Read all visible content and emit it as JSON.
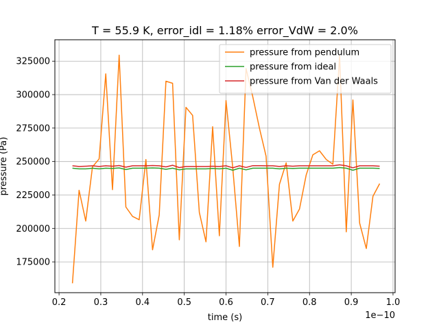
{
  "chart_data": {
    "type": "line",
    "title": "T = 55.9 K, error_idl = 1.18% error_VdW = 2.0%",
    "xlabel": "time (s)",
    "ylabel": "pressure (Pa)",
    "x_offset_text": "1e−10",
    "x_scale": 1e-10,
    "xlim": [
      0.19,
      1.005
    ],
    "ylim": [
      152000,
      341000
    ],
    "xticks": [
      0.2,
      0.3,
      0.4,
      0.5,
      0.6,
      0.7,
      0.8,
      0.9,
      1.0
    ],
    "xtick_labels": [
      "0.2",
      "0.3",
      "0.4",
      "0.5",
      "0.6",
      "0.7",
      "0.8",
      "0.9",
      "1.0"
    ],
    "yticks": [
      175000,
      200000,
      225000,
      250000,
      275000,
      300000,
      325000
    ],
    "ytick_labels": [
      "175000",
      "200000",
      "225000",
      "250000",
      "275000",
      "300000",
      "325000"
    ],
    "grid": true,
    "legend_position": "top-right",
    "x": [
      0.232,
      0.248,
      0.264,
      0.28,
      0.296,
      0.312,
      0.328,
      0.344,
      0.36,
      0.376,
      0.392,
      0.408,
      0.424,
      0.44,
      0.456,
      0.472,
      0.488,
      0.504,
      0.52,
      0.536,
      0.552,
      0.568,
      0.584,
      0.6,
      0.616,
      0.632,
      0.648,
      0.664,
      0.68,
      0.696,
      0.712,
      0.728,
      0.744,
      0.76,
      0.776,
      0.792,
      0.808,
      0.824,
      0.84,
      0.856,
      0.872,
      0.888,
      0.904,
      0.92,
      0.936,
      0.952,
      0.968
    ],
    "series": [
      {
        "name": "pressure from pendulum",
        "color": "#ff7f0e",
        "values": [
          159000,
          228500,
          205500,
          246000,
          252000,
          315500,
          229000,
          329500,
          216000,
          209000,
          206500,
          251500,
          184000,
          210000,
          310000,
          308500,
          191500,
          290500,
          284500,
          212000,
          190000,
          276000,
          194500,
          295500,
          245500,
          186500,
          319500,
          298500,
          275000,
          254000,
          171000,
          233000,
          249000,
          205500,
          214500,
          240000,
          255000,
          258000,
          251500,
          248000,
          329000,
          197500,
          296000,
          204000,
          185000,
          224000,
          233500
        ]
      },
      {
        "name": "pressure from ideal",
        "color": "#2ca02c",
        "values": [
          245000,
          244500,
          244500,
          245000,
          244500,
          245000,
          244800,
          245200,
          244000,
          245000,
          245000,
          245000,
          245200,
          245000,
          244200,
          245000,
          243800,
          244500,
          244500,
          244500,
          244500,
          244800,
          244500,
          245000,
          243500,
          245000,
          243800,
          245000,
          245000,
          245000,
          245000,
          244500,
          245000,
          244800,
          245000,
          245000,
          245000,
          245000,
          245000,
          245000,
          245500,
          245000,
          243500,
          245000,
          245000,
          245000,
          244800
        ]
      },
      {
        "name": "pressure from Van der Waals",
        "color": "#d62728",
        "values": [
          246800,
          246300,
          246500,
          246800,
          246300,
          246800,
          246500,
          247000,
          245800,
          246800,
          246800,
          246800,
          247000,
          246800,
          246000,
          247200,
          245500,
          246300,
          246300,
          246300,
          246300,
          246500,
          246300,
          246800,
          245300,
          246800,
          245600,
          246900,
          246900,
          246800,
          246800,
          246300,
          246800,
          246500,
          246800,
          246800,
          246800,
          246800,
          246800,
          246800,
          247500,
          246800,
          245300,
          246800,
          246800,
          246800,
          246500
        ]
      }
    ]
  }
}
